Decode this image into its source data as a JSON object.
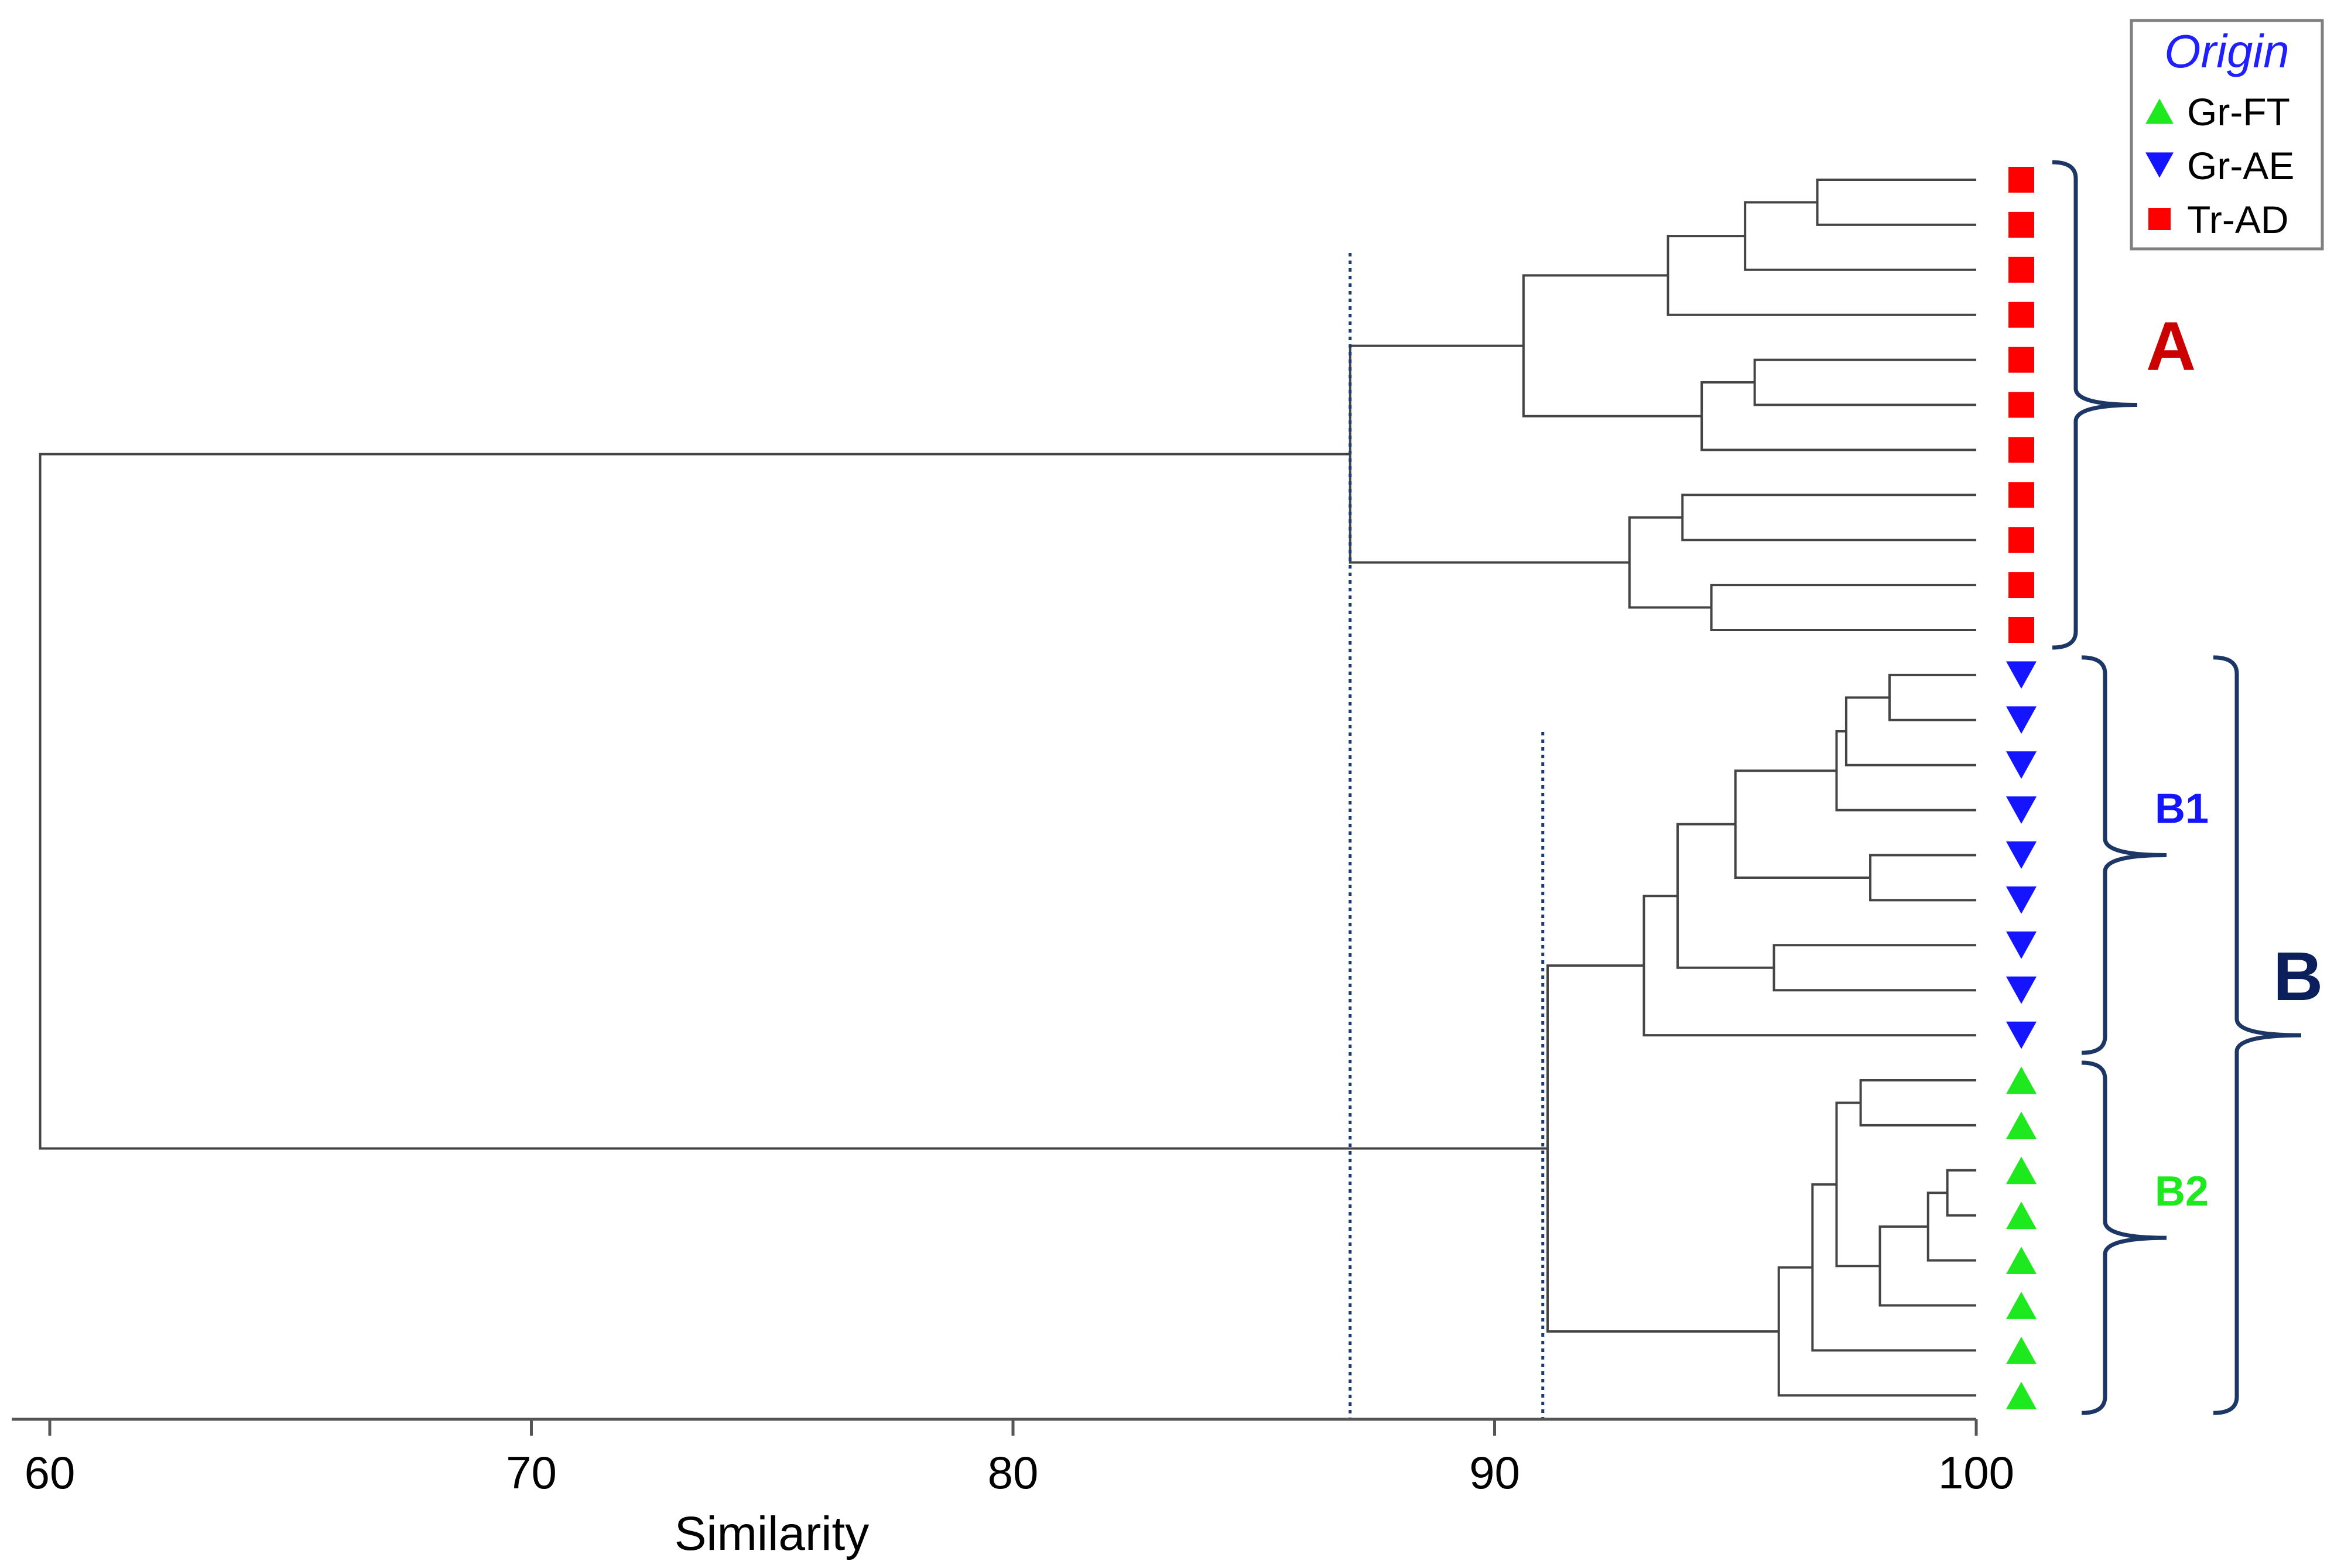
{
  "chart_data": {
    "type": "dendrogram",
    "xlabel": "Similarity",
    "xlim": [
      59.2,
      100
    ],
    "xticks": [
      60,
      70,
      80,
      90,
      100
    ],
    "cutoff_lines": [
      87,
      91
    ],
    "legend": {
      "title": "Origin",
      "placement": "top-right",
      "entries": [
        {
          "label": "Gr-FT",
          "marker": "triangle-up",
          "color": "#1ee81e"
        },
        {
          "label": "Gr-AE",
          "marker": "triangle-down",
          "color": "#1414ff"
        },
        {
          "label": "Tr-AD",
          "marker": "square",
          "color": "#ff0000"
        }
      ]
    },
    "leaves": [
      "Tr-AD",
      "Tr-AD",
      "Tr-AD",
      "Tr-AD",
      "Tr-AD",
      "Tr-AD",
      "Tr-AD",
      "Tr-AD",
      "Tr-AD",
      "Tr-AD",
      "Tr-AD",
      "Gr-AE",
      "Gr-AE",
      "Gr-AE",
      "Gr-AE",
      "Gr-AE",
      "Gr-AE",
      "Gr-AE",
      "Gr-AE",
      "Gr-AE",
      "Gr-FT",
      "Gr-FT",
      "Gr-FT",
      "Gr-FT",
      "Gr-FT",
      "Gr-FT",
      "Gr-FT",
      "Gr-FT"
    ],
    "merges": [
      {
        "a": 0,
        "b": 1,
        "similarity": 96.7
      },
      {
        "a": "m0",
        "b": 2,
        "similarity": 95.2
      },
      {
        "a": "m1",
        "b": 3,
        "similarity": 93.6
      },
      {
        "a": 4,
        "b": 5,
        "similarity": 95.4
      },
      {
        "a": "m3",
        "b": 6,
        "similarity": 94.3
      },
      {
        "a": "m2",
        "b": "m4",
        "similarity": 90.6
      },
      {
        "a": 7,
        "b": 8,
        "similarity": 93.9
      },
      {
        "a": 9,
        "b": 10,
        "similarity": 94.5
      },
      {
        "a": "m6",
        "b": "m7",
        "similarity": 92.8
      },
      {
        "a": "m5",
        "b": "m8",
        "similarity": 87.0
      },
      {
        "a": 11,
        "b": 12,
        "similarity": 98.2
      },
      {
        "a": "m10",
        "b": 13,
        "similarity": 97.3
      },
      {
        "a": "m11",
        "b": 14,
        "similarity": 97.1
      },
      {
        "a": 15,
        "b": 16,
        "similarity": 97.8
      },
      {
        "a": "m12",
        "b": "m13",
        "similarity": 95.0
      },
      {
        "a": 17,
        "b": 18,
        "similarity": 95.8
      },
      {
        "a": "m14",
        "b": "m15",
        "similarity": 93.8
      },
      {
        "a": "m16",
        "b": 19,
        "similarity": 93.1
      },
      {
        "a": 20,
        "b": 21,
        "similarity": 97.6
      },
      {
        "a": 22,
        "b": 23,
        "similarity": 99.4
      },
      {
        "a": "m19",
        "b": 24,
        "similarity": 99.0
      },
      {
        "a": "m20",
        "b": 25,
        "similarity": 98.0
      },
      {
        "a": "m18",
        "b": "m21",
        "similarity": 97.1
      },
      {
        "a": "m22",
        "b": 26,
        "similarity": 96.6
      },
      {
        "a": "m23",
        "b": 27,
        "similarity": 95.9
      },
      {
        "a": "m17",
        "b": "m24",
        "similarity": 91.1
      },
      {
        "a": "m9",
        "b": "m25",
        "similarity": 59.8
      }
    ],
    "groups": [
      {
        "label": "A",
        "from_leaf": 0,
        "to_leaf": 10,
        "color": "#cc0000"
      },
      {
        "label": "B1",
        "from_leaf": 11,
        "to_leaf": 19,
        "color": "#1414ff"
      },
      {
        "label": "B2",
        "from_leaf": 20,
        "to_leaf": 27,
        "color": "#1ee81e"
      },
      {
        "label": "B",
        "from_leaf": 11,
        "to_leaf": 27,
        "color": "#0b1f5c"
      }
    ]
  }
}
